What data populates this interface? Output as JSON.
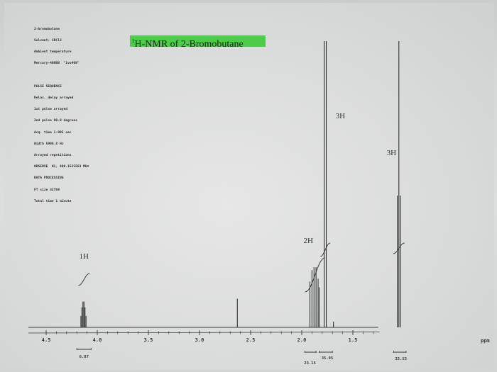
{
  "parameter_block": {
    "lines": [
      "2-bromobutane",
      "Solvent: CDCl3",
      "Ambient temperature",
      "Mercury-400BB  \"ivu400\"",
      "",
      "PULSE SEQUENCE",
      "Relax. delay arrayed",
      "1st pulse arrayed",
      "2nd pulse 90.0 degrees",
      "Acq. time 1.995 sec",
      "Width 5998.8 Hz",
      "Arrayed repetitions",
      "OBSERVE  H1, 400.1525583 MHz",
      "DATA PROCESSING",
      "FT size 32768",
      "Total time 1 minute"
    ]
  },
  "chart_data": {
    "type": "line",
    "title_prefix": "1",
    "title": "H-NMR of 2-Bromobutane",
    "xlabel": "ppm",
    "ylabel": "",
    "xlim": [
      4.5,
      1.35
    ],
    "ylim": [
      0,
      100
    ],
    "x_axis_reversed": true,
    "x_ticks": [
      "4.5",
      "4.0",
      "3.5",
      "3.0",
      "2.5",
      "2.0",
      "1.5"
    ],
    "x_tick_values": [
      4.5,
      4.0,
      3.5,
      3.0,
      2.5,
      2.0,
      1.5
    ],
    "grid": false,
    "peaks": [
      {
        "ppm": 4.11,
        "height": 4
      },
      {
        "ppm": 4.12,
        "height": 7
      },
      {
        "ppm": 4.13,
        "height": 9
      },
      {
        "ppm": 4.14,
        "height": 9
      },
      {
        "ppm": 4.15,
        "height": 7
      },
      {
        "ppm": 4.16,
        "height": 4
      },
      {
        "ppm": 2.63,
        "height": 10
      },
      {
        "ppm": 1.92,
        "height": 16
      },
      {
        "ppm": 1.9,
        "height": 20
      },
      {
        "ppm": 1.88,
        "height": 21
      },
      {
        "ppm": 1.86,
        "height": 21
      },
      {
        "ppm": 1.84,
        "height": 17
      },
      {
        "ppm": 1.83,
        "height": 14
      },
      {
        "ppm": 1.78,
        "height": 100
      },
      {
        "ppm": 1.76,
        "height": 100
      },
      {
        "ppm": 1.69,
        "height": 2
      },
      {
        "ppm": 1.065,
        "height": 46
      },
      {
        "ppm": 1.05,
        "height": 100
      },
      {
        "ppm": 1.035,
        "height": 46
      }
    ],
    "integrals": [
      {
        "label": "1H",
        "value": "6.87",
        "center": 4.13
      },
      {
        "label": "2H",
        "value": "23.15",
        "center": 1.87
      },
      {
        "label": "3H",
        "value": "35.85",
        "center": 1.77
      },
      {
        "label": "3H",
        "value": "32.53",
        "center": 1.05
      }
    ]
  }
}
